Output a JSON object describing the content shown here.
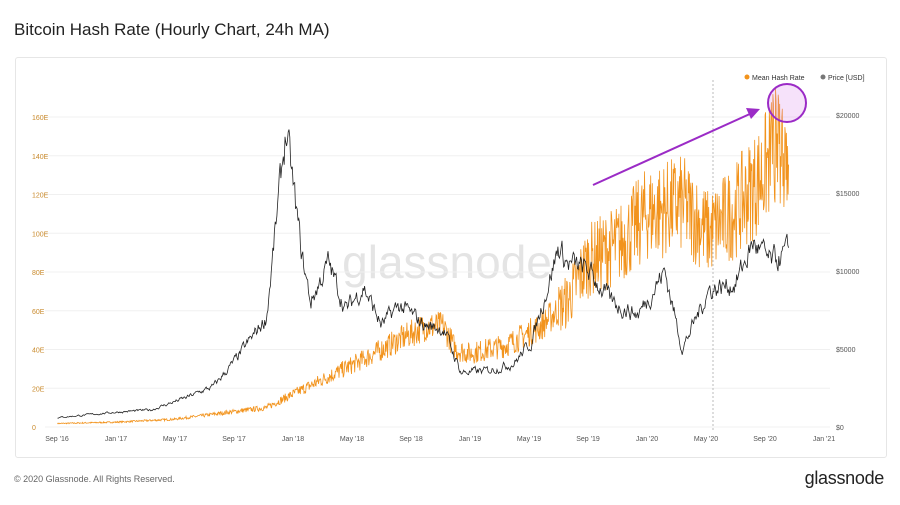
{
  "title": "Bitcoin Hash Rate (Hourly Chart, 24h MA)",
  "footer": "© 2020 Glassnode. All Rights Reserved.",
  "brand": "glassnode",
  "watermark": "glassnode",
  "colors": {
    "hash": "#f2931c",
    "price": "#222222",
    "annotation": "#9b2bc6",
    "left_axis": "#c98a2c"
  },
  "chart_data": {
    "type": "line",
    "title": "Bitcoin Hash Rate (Hourly Chart, 24h MA)",
    "legend": [
      {
        "name": "Mean Hash Rate",
        "color": "#f2931c"
      },
      {
        "name": "Price [USD]",
        "color": "#777777"
      }
    ],
    "legend_position": "top-right",
    "x_ticks": [
      "Sep '16",
      "Jan '17",
      "May '17",
      "Sep '17",
      "Jan '18",
      "May '18",
      "Sep '18",
      "Jan '19",
      "May '19",
      "Sep '19",
      "Jan '20",
      "May '20",
      "Sep '20",
      "Jan '21"
    ],
    "y_left_ticks": [
      "0",
      "20E",
      "40E",
      "60E",
      "80E",
      "100E",
      "120E",
      "140E",
      "160E"
    ],
    "y_left_range": [
      0,
      160
    ],
    "y_right_ticks": [
      "$0",
      "$5000",
      "$10000",
      "$15000",
      "$20000"
    ],
    "y_right_range": [
      0,
      20000
    ],
    "x_range": [
      2016.667,
      2021.0
    ],
    "series": [
      {
        "name": "Mean Hash Rate",
        "unit": "EH/s",
        "points": [
          [
            2016.67,
            1.8
          ],
          [
            2017.0,
            2.5
          ],
          [
            2017.33,
            4
          ],
          [
            2017.67,
            8
          ],
          [
            2017.85,
            10
          ],
          [
            2018.0,
            17
          ],
          [
            2018.2,
            26
          ],
          [
            2018.4,
            35
          ],
          [
            2018.6,
            45
          ],
          [
            2018.75,
            52
          ],
          [
            2018.85,
            52
          ],
          [
            2018.92,
            40
          ],
          [
            2019.0,
            38
          ],
          [
            2019.2,
            42
          ],
          [
            2019.4,
            52
          ],
          [
            2019.55,
            65
          ],
          [
            2019.67,
            86
          ],
          [
            2019.85,
            95
          ],
          [
            2020.0,
            110
          ],
          [
            2020.2,
            115
          ],
          [
            2020.35,
            100
          ],
          [
            2020.5,
            112
          ],
          [
            2020.65,
            130
          ],
          [
            2020.75,
            148
          ],
          [
            2020.8,
            140
          ]
        ]
      },
      {
        "name": "Price [USD]",
        "unit": "USD",
        "points": [
          [
            2016.67,
            600
          ],
          [
            2017.0,
            950
          ],
          [
            2017.2,
            1100
          ],
          [
            2017.4,
            1900
          ],
          [
            2017.55,
            2600
          ],
          [
            2017.67,
            4200
          ],
          [
            2017.85,
            7000
          ],
          [
            2017.96,
            19000
          ],
          [
            2018.05,
            11000
          ],
          [
            2018.1,
            8000
          ],
          [
            2018.2,
            10500
          ],
          [
            2018.3,
            7500
          ],
          [
            2018.4,
            9000
          ],
          [
            2018.5,
            6500
          ],
          [
            2018.6,
            7800
          ],
          [
            2018.75,
            6500
          ],
          [
            2018.85,
            6300
          ],
          [
            2018.95,
            3500
          ],
          [
            2019.1,
            3600
          ],
          [
            2019.25,
            4100
          ],
          [
            2019.35,
            5500
          ],
          [
            2019.5,
            11500
          ],
          [
            2019.55,
            10500
          ],
          [
            2019.67,
            10000
          ],
          [
            2019.8,
            8000
          ],
          [
            2019.95,
            7200
          ],
          [
            2020.1,
            10000
          ],
          [
            2020.2,
            5000
          ],
          [
            2020.35,
            8800
          ],
          [
            2020.5,
            9200
          ],
          [
            2020.6,
            11800
          ],
          [
            2020.7,
            10500
          ],
          [
            2020.8,
            11200
          ]
        ]
      }
    ],
    "annotations": [
      "arrow pointing to recent hash rate peak",
      "circle around peak ~170E"
    ],
    "vertical_marker": "May 2020 halving"
  }
}
